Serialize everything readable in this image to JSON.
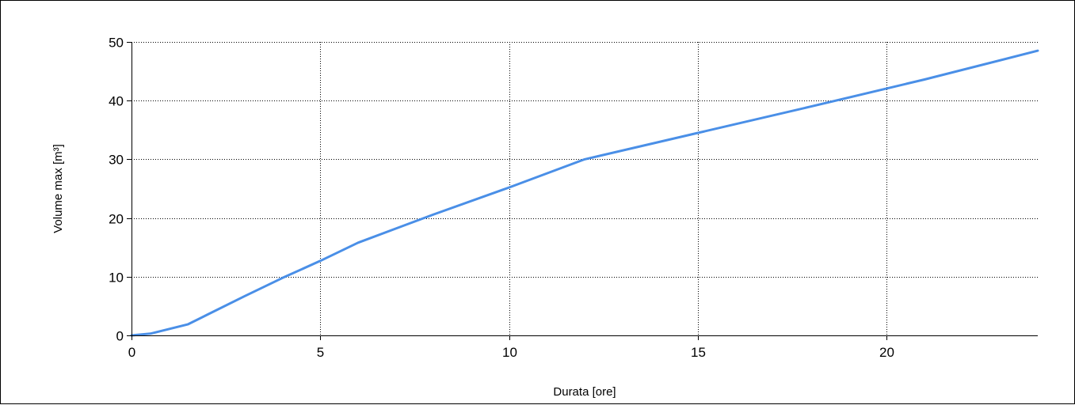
{
  "chart_data": {
    "type": "line",
    "title": "",
    "xlabel": "Durata [ore]",
    "ylabel": "Volume max [m³]",
    "xlim": [
      0,
      24
    ],
    "ylim": [
      0,
      50
    ],
    "xticks": [
      0,
      5,
      10,
      15,
      20
    ],
    "yticks": [
      0,
      10,
      20,
      30,
      40,
      50
    ],
    "grid": true,
    "legend": "none",
    "colors": {
      "series": "#4a8fe7",
      "grid": "#000000",
      "axis": "#000000"
    },
    "series": [
      {
        "x": [
          0,
          0.5,
          1.5,
          2,
          3,
          4,
          5,
          6,
          8,
          10,
          12,
          15,
          18,
          21,
          24
        ],
        "y": [
          0,
          0.3,
          1.9,
          3.5,
          6.7,
          9.8,
          12.7,
          15.8,
          20.6,
          25.2,
          30.0,
          34.5,
          39.0,
          43.6,
          48.5
        ]
      }
    ]
  }
}
